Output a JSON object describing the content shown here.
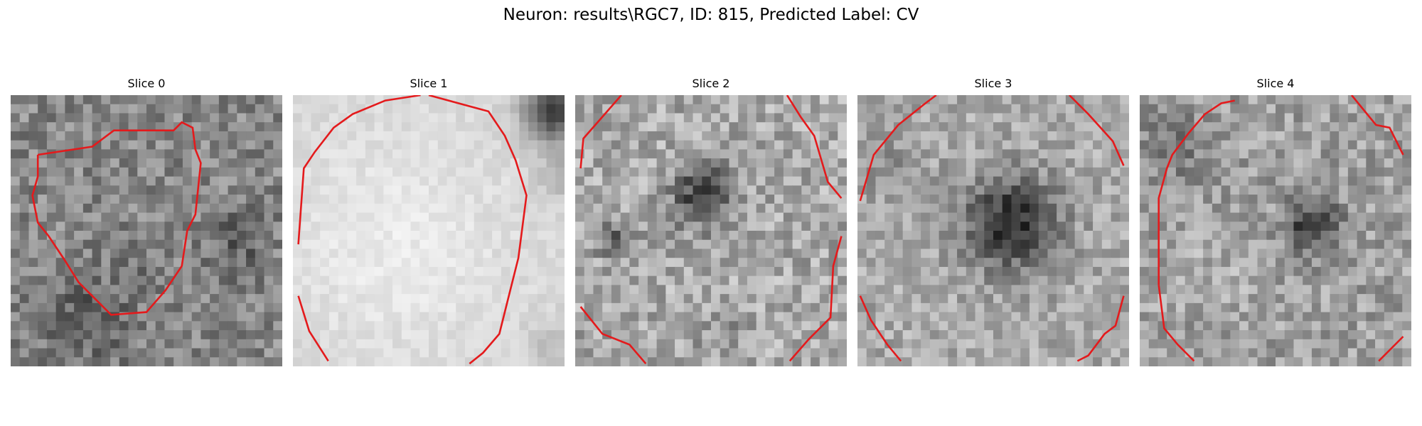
{
  "figure": {
    "title": "Neuron: results\\RGC7, ID: 815, Predicted Label: CV"
  },
  "panels": [
    {
      "title": "Slice 0",
      "contour_color": "#e41a1c"
    },
    {
      "title": "Slice 1",
      "contour_color": "#e41a1c"
    },
    {
      "title": "Slice 2",
      "contour_color": "#e41a1c"
    },
    {
      "title": "Slice 3",
      "contour_color": "#e41a1c"
    },
    {
      "title": "Slice 4",
      "contour_color": "#e41a1c"
    }
  ]
}
